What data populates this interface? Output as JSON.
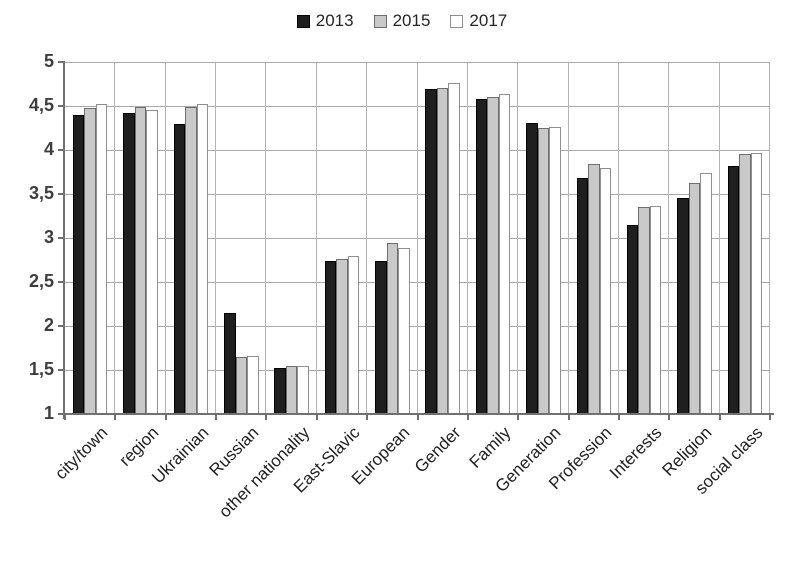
{
  "chart_data": {
    "type": "bar",
    "title": "",
    "xlabel": "",
    "ylabel": "",
    "ylim": [
      1,
      5
    ],
    "ytick_step": 0.5,
    "ytick_labels": [
      "5",
      "4,5",
      "4",
      "3,5",
      "3",
      "2,5",
      "2",
      "1,5",
      "1"
    ],
    "grid": true,
    "legend_position": "top",
    "categories": [
      "city/town",
      "region",
      "Ukrainian",
      "Russian",
      "other nationality",
      "East-Slavic",
      "European",
      "Gender",
      "Family",
      "Generation",
      "Profession",
      "Interests",
      "Religion",
      "social class"
    ],
    "series": [
      {
        "name": "2013",
        "fill": "#1f1f1f",
        "border": "#000000",
        "values": [
          4.4,
          4.42,
          4.3,
          2.15,
          1.52,
          2.74,
          2.74,
          4.69,
          4.58,
          4.31,
          3.68,
          3.15,
          3.45,
          3.82
        ]
      },
      {
        "name": "2015",
        "fill": "#c9c9c9",
        "border": "#6e6e6e",
        "values": [
          4.48,
          4.49,
          4.49,
          1.65,
          1.55,
          2.76,
          2.94,
          4.7,
          4.6,
          4.25,
          3.84,
          3.35,
          3.63,
          3.95
        ]
      },
      {
        "name": "2017",
        "fill": "#ffffff",
        "border": "#8f8f8f",
        "values": [
          4.52,
          4.46,
          4.52,
          1.66,
          1.55,
          2.8,
          2.89,
          4.76,
          4.64,
          4.26,
          3.8,
          3.36,
          3.74,
          3.97
        ]
      }
    ],
    "colors": {
      "gridline": "#a9a9a9",
      "axis": "#707070",
      "y_tick_text": "#3d3d3d",
      "x_tick_text": "#1f1f1f"
    }
  }
}
